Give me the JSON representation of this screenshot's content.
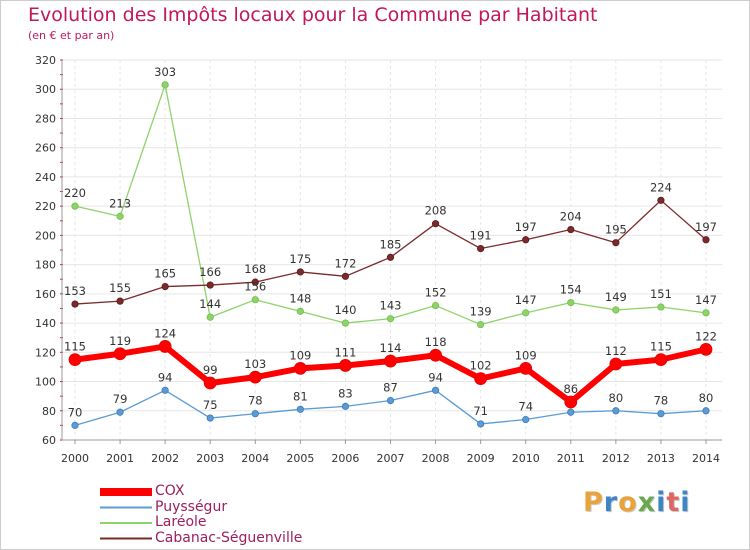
{
  "title": "Evolution des Impôts locaux pour la Commune par Habitant",
  "subtitle": "(en € et par an)",
  "brand": {
    "letters": [
      "P",
      "r",
      "o",
      "x",
      "i",
      "t",
      "i"
    ],
    "colors": [
      "#e8a33a",
      "#3d85c6",
      "#e8a33a",
      "#6aa84f",
      "#3d85c6",
      "#e06666",
      "#3d85c6"
    ]
  },
  "chart_data": {
    "type": "line",
    "title": "Evolution des Impôts locaux pour la Commune par Habitant",
    "subtitle": "(en € et par an)",
    "x": [
      "2000",
      "2001",
      "2002",
      "2003",
      "2004",
      "2005",
      "2006",
      "2007",
      "2008",
      "2009",
      "2010",
      "2011",
      "2012",
      "2013",
      "2014"
    ],
    "ylim": [
      60,
      320
    ],
    "yticks": [
      "60",
      "80",
      "100",
      "120",
      "140",
      "160",
      "180",
      "200",
      "220",
      "240",
      "260",
      "280",
      "300",
      "320"
    ],
    "grid": true,
    "legend_position": "bottom-left",
    "series": [
      {
        "name": "COX",
        "color": "#ff0000",
        "values": [
          115,
          119,
          124,
          99,
          103,
          109,
          111,
          114,
          118,
          102,
          109,
          86,
          112,
          115,
          122
        ]
      },
      {
        "name": "Puysségur",
        "color": "#5b9bd5",
        "values": [
          70,
          79,
          94,
          75,
          78,
          81,
          83,
          87,
          94,
          71,
          74,
          79,
          80,
          78,
          80
        ],
        "labels": [
          "70",
          "79",
          "94",
          "75",
          "78",
          "81",
          "83",
          "87",
          "94",
          "71",
          "74",
          "",
          "80",
          "78",
          "80"
        ]
      },
      {
        "name": "Laréole",
        "color": "#8ed26b",
        "values": [
          220,
          213,
          303,
          144,
          156,
          148,
          140,
          143,
          152,
          139,
          147,
          154,
          149,
          151,
          147
        ]
      },
      {
        "name": "Cabanac-Séguenville",
        "color": "#7b2a2a",
        "values": [
          153,
          155,
          165,
          166,
          168,
          175,
          172,
          185,
          208,
          191,
          197,
          204,
          195,
          224,
          197
        ]
      }
    ]
  }
}
